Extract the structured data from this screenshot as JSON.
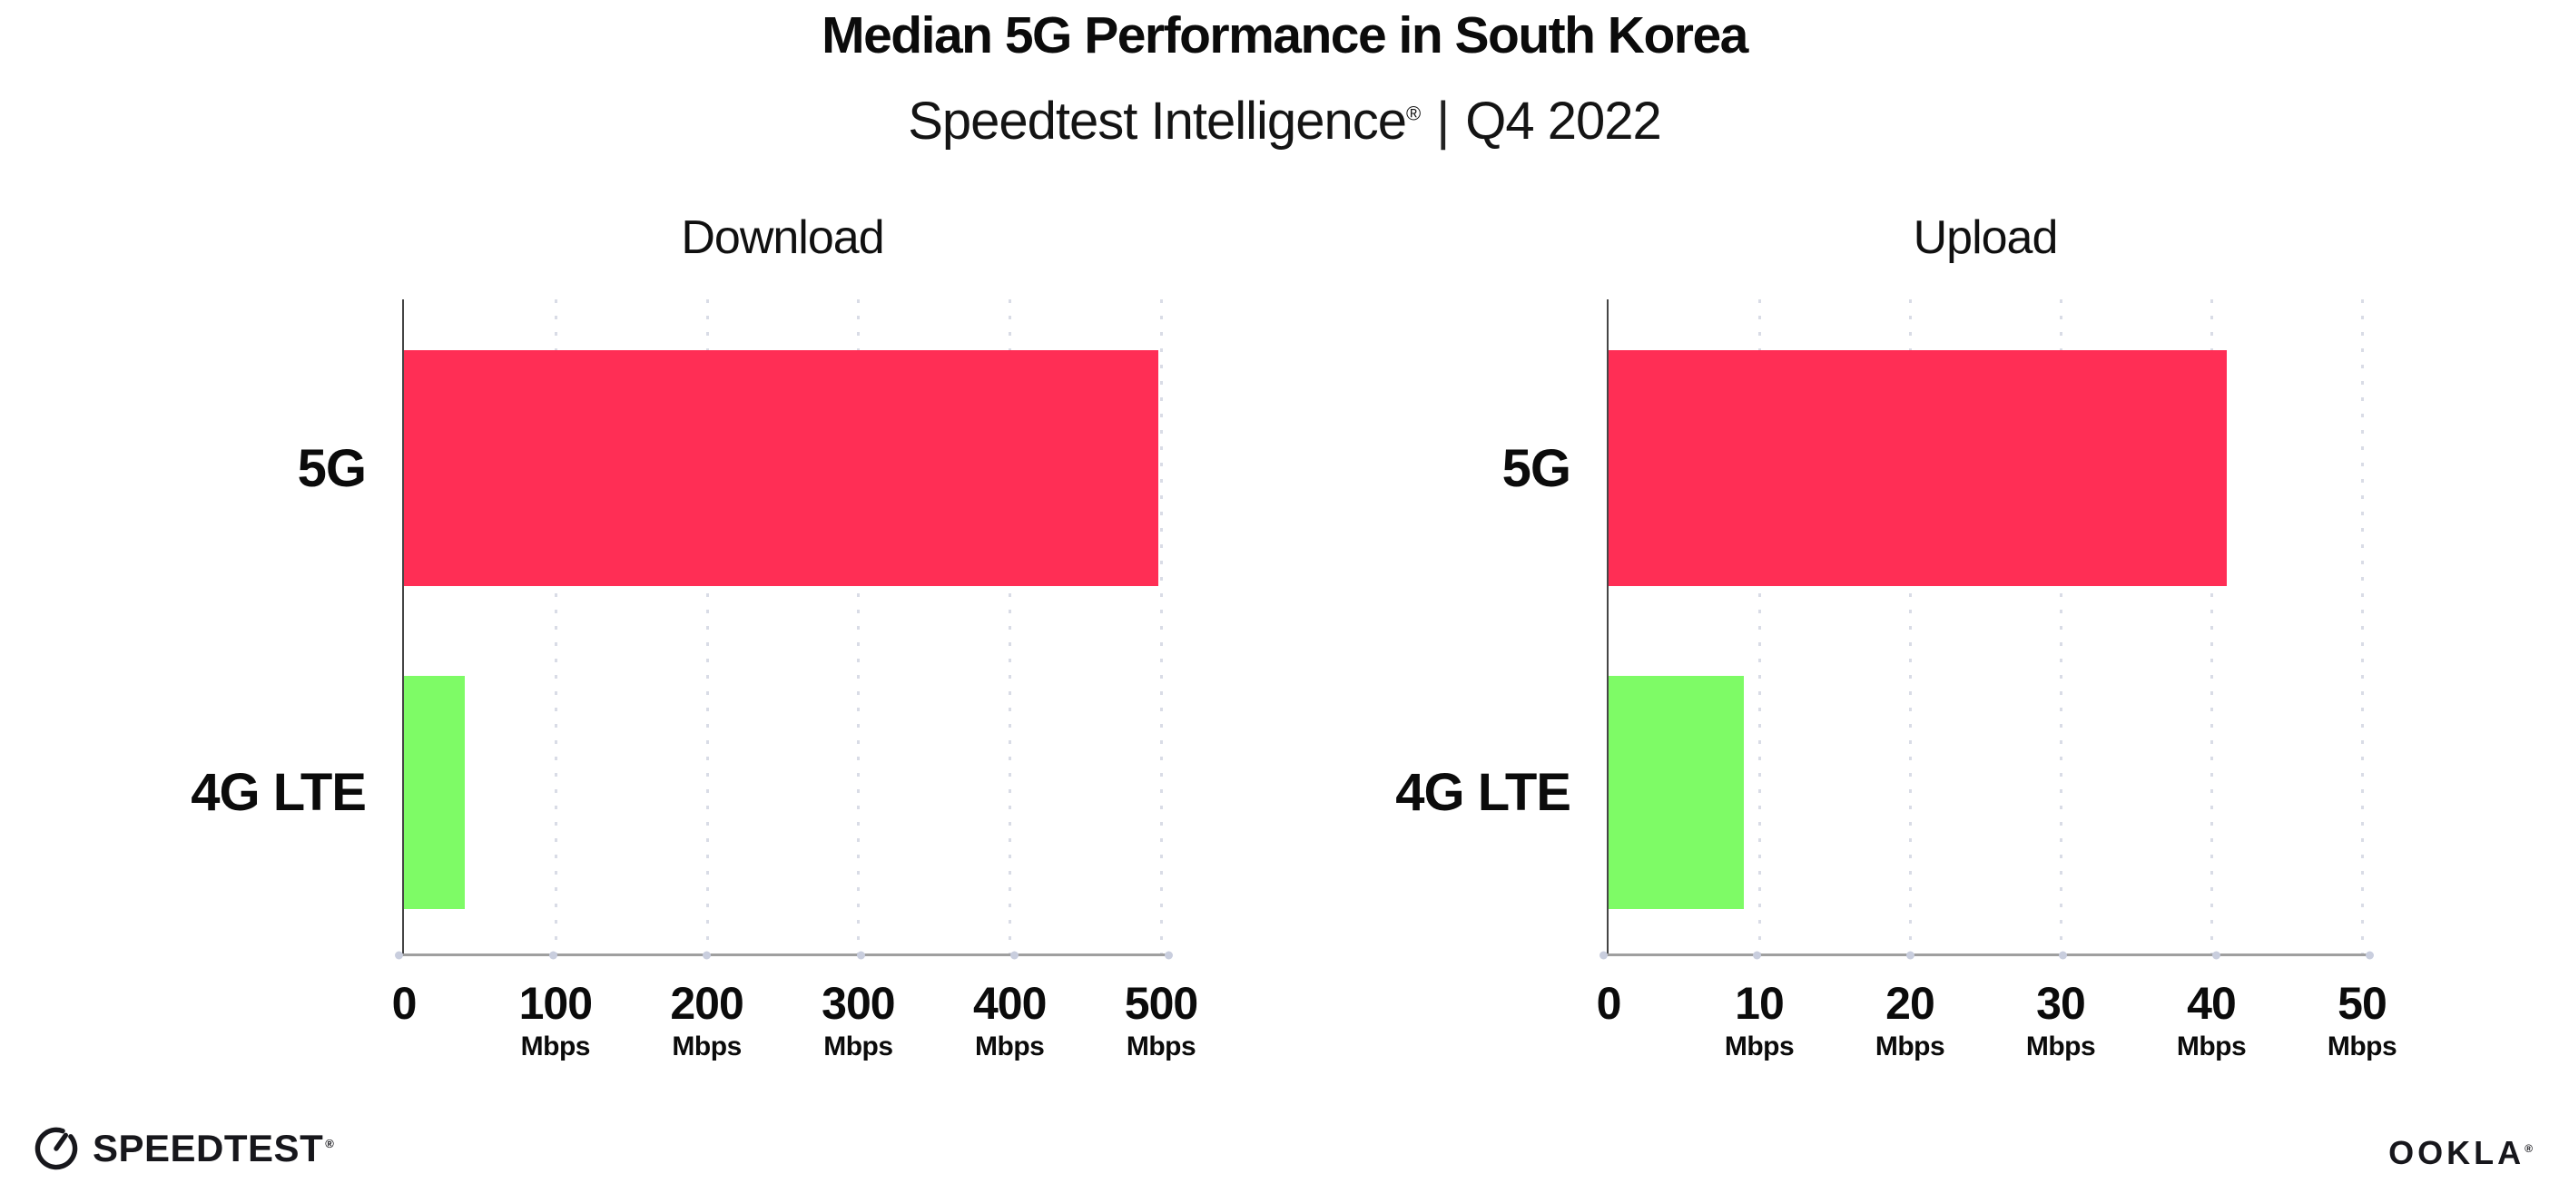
{
  "header": {
    "title": "Median 5G Performance in South Korea",
    "subtitle": {
      "brand": "Speedtest Intelligence",
      "registered": "®",
      "separator": "|",
      "period": "Q4 2022"
    }
  },
  "chart_data": [
    {
      "type": "bar",
      "orientation": "horizontal",
      "title": "Download",
      "categories": [
        "5G",
        "4G LTE"
      ],
      "values": [
        498,
        40
      ],
      "unit": "Mbps",
      "xlim": [
        0,
        500
      ],
      "xticks": [
        {
          "label": "0",
          "unit": ""
        },
        {
          "label": "100",
          "unit": "Mbps"
        },
        {
          "label": "200",
          "unit": "Mbps"
        },
        {
          "label": "300",
          "unit": "Mbps"
        },
        {
          "label": "400",
          "unit": "Mbps"
        },
        {
          "label": "500",
          "unit": "Mbps"
        }
      ],
      "bar_colors": [
        "#ff2e55",
        "#7efb66"
      ],
      "grid": "vertical-dotted",
      "legend": "none"
    },
    {
      "type": "bar",
      "orientation": "horizontal",
      "title": "Upload",
      "categories": [
        "5G",
        "4G LTE"
      ],
      "values": [
        41,
        9
      ],
      "unit": "Mbps",
      "xlim": [
        0,
        50
      ],
      "xticks": [
        {
          "label": "0",
          "unit": ""
        },
        {
          "label": "10",
          "unit": "Mbps"
        },
        {
          "label": "20",
          "unit": "Mbps"
        },
        {
          "label": "30",
          "unit": "Mbps"
        },
        {
          "label": "40",
          "unit": "Mbps"
        },
        {
          "label": "50",
          "unit": "Mbps"
        }
      ],
      "bar_colors": [
        "#ff2e55",
        "#7efb66"
      ],
      "grid": "vertical-dotted",
      "legend": "none"
    }
  ],
  "footer": {
    "speedtest_label": "SPEEDTEST",
    "speedtest_registered": "®",
    "ookla_label": "OOKLA",
    "ookla_registered": "®"
  },
  "colors": {
    "bar_5g": "#ff2e55",
    "bar_4g_lte": "#7efb66",
    "text": "#0b0b0b",
    "x_axis": "#9f9f9f",
    "y_axis": "#454545",
    "gridline": "#d9dce6",
    "tick_dot": "#c9cede",
    "background": "#ffffff"
  }
}
